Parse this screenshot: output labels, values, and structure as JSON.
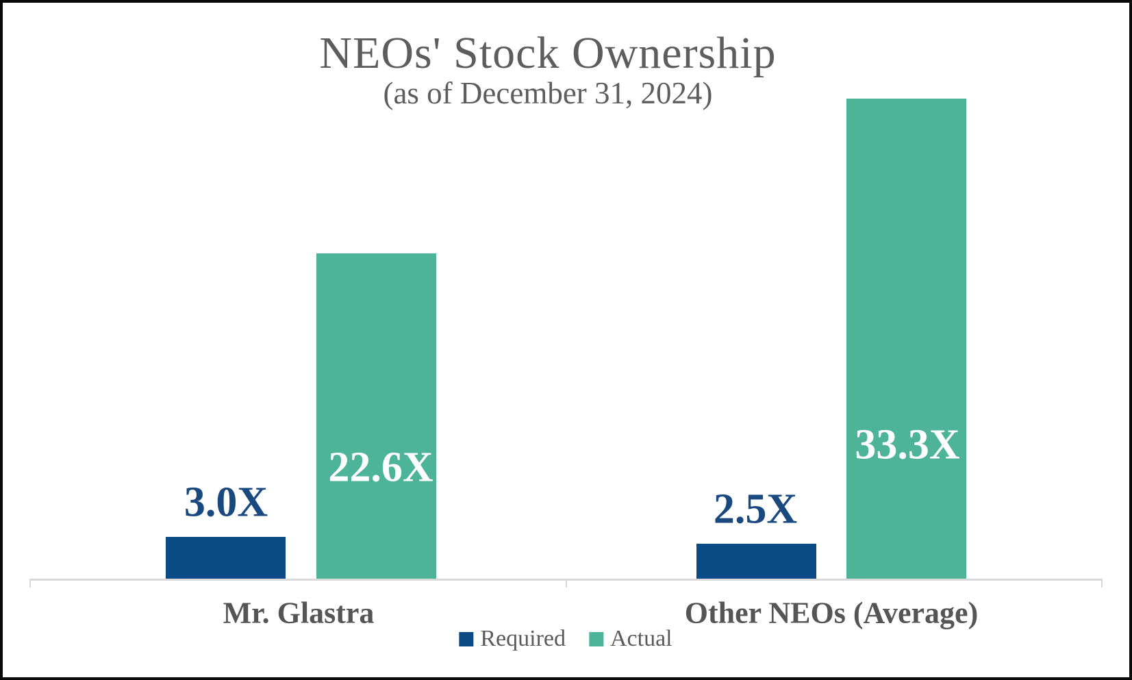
{
  "title": "NEOs' Stock Ownership",
  "subtitle": "(as of December 31, 2024)",
  "colors": {
    "required_blue": "#0a4b85",
    "actual_teal": "#4db399",
    "value_label_navy": "#19497f",
    "value_label_white": "#ffffff",
    "text_gray": "#5d5d5d",
    "axis_gray": "#d9d9d9"
  },
  "legend": {
    "items": [
      {
        "label": "Required",
        "color": "#0a4b85"
      },
      {
        "label": "Actual",
        "color": "#4db399"
      }
    ]
  },
  "chart_data": {
    "type": "bar",
    "title": "NEOs' Stock Ownership",
    "subtitle": "(as of December 31, 2024)",
    "categories": [
      "Mr. Glastra",
      "Other NEOs (Average)"
    ],
    "series": [
      {
        "name": "Required",
        "color": "#0a4b85",
        "values": [
          3.0,
          2.5
        ],
        "labels": [
          "3.0X",
          "2.5X"
        ]
      },
      {
        "name": "Actual",
        "color": "#4db399",
        "values": [
          22.6,
          33.3
        ],
        "labels": [
          "22.6X",
          "33.3X"
        ]
      }
    ],
    "xlabel": "",
    "ylabel": "",
    "ylim": [
      0,
      35
    ],
    "grid": false,
    "y_axis_visible": false,
    "legend_position": "bottom"
  }
}
